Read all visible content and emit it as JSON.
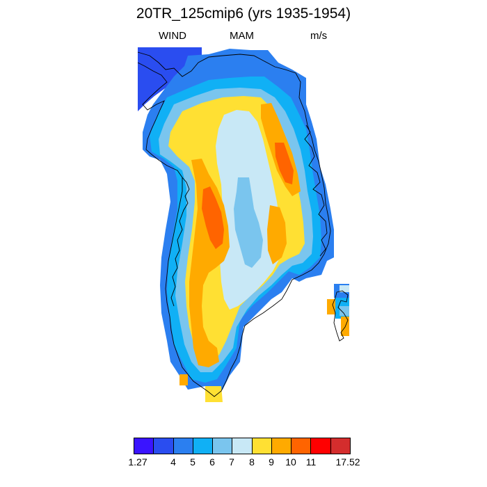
{
  "title": "20TR_125cmip6 (yrs 1935-1954)",
  "subtitle": {
    "left": "WIND",
    "center": "MAM",
    "right": "m/s"
  },
  "colorbar": {
    "colors": [
      "#3a14ff",
      "#2a4df0",
      "#2b7ff0",
      "#10b0f5",
      "#7ac5ee",
      "#c8e8f6",
      "#ffe033",
      "#ffaa00",
      "#ff6400",
      "#ff0000",
      "#d42d2d"
    ],
    "labels": [
      "1.27",
      "4",
      "5",
      "6",
      "7",
      "8",
      "9",
      "10",
      "11",
      "17.52"
    ]
  },
  "map": {
    "region": "Greenland",
    "variable": "WIND",
    "season": "MAM",
    "units": "m/s"
  }
}
